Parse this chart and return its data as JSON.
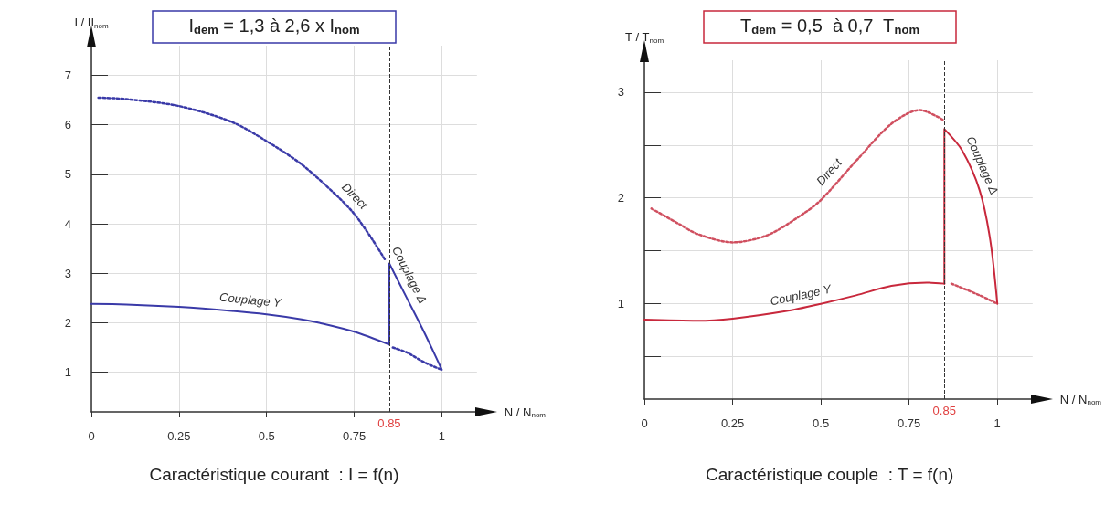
{
  "chart_data": [
    {
      "type": "line",
      "title": "I$_{dem}$ = 1,3 à 2,6 x I$_{nom}$",
      "xlabel": "N / N$_{nom}$",
      "ylabel": "I / II$_{nom}$",
      "xlim": [
        0,
        1.1
      ],
      "xticks": [
        0,
        0.25,
        0.5,
        0.75,
        1
      ],
      "ylim": [
        0.2,
        7.6
      ],
      "yticks": [
        1,
        2,
        3,
        4,
        5,
        6,
        7
      ],
      "grid": true,
      "legend": false,
      "marker": "none",
      "series": [
        {
          "name": "Direct",
          "color": "#3a3aa8",
          "line_style": "dotted",
          "x": [
            0.02,
            0.1,
            0.25,
            0.4,
            0.5,
            0.6,
            0.7,
            0.75,
            0.8,
            0.84,
            0.845,
            0.86,
            0.9,
            0.95,
            1
          ],
          "values": [
            6.55,
            6.52,
            6.38,
            6.06,
            5.67,
            5.2,
            4.57,
            4.2,
            3.7,
            3.25,
            null,
            1.5,
            1.4,
            1.2,
            1.05
          ]
        },
        {
          "name": "Couplage Y",
          "color": "#3a3aa8",
          "line_style": "solid",
          "x": [
            0,
            0.1,
            0.25,
            0.4,
            0.5,
            0.6,
            0.65,
            0.75,
            0.85
          ],
          "values": [
            2.38,
            2.37,
            2.32,
            2.24,
            2.17,
            2.07,
            2.0,
            1.82,
            1.56
          ]
        },
        {
          "name": "Couplage Δ",
          "color": "#3a3aa8",
          "line_style": "solid",
          "x": [
            0.85,
            0.85,
            0.9,
            0.95,
            1
          ],
          "values": [
            1.56,
            3.2,
            2.5,
            1.8,
            1.05
          ]
        }
      ],
      "ref_lines": [
        {
          "axis": "x",
          "value": 0.85,
          "label": "0.85",
          "color": "#333333",
          "line_style": "dashed"
        }
      ],
      "annotations": [
        "Caractéristique courant  : I = f(n)"
      ]
    },
    {
      "type": "line",
      "title": "T$_{dem}$ = 0,5  à 0,7  T$_{nom}$",
      "xlabel": "N / N$_{nom}$",
      "ylabel": "T / T$_{nom}$",
      "xlim": [
        0,
        1.1
      ],
      "xticks": [
        0,
        0.25,
        0.5,
        0.75,
        1
      ],
      "ylim": [
        0.1,
        3.3
      ],
      "yticks": [
        {
          "value": 0.5,
          "label": null
        },
        1,
        {
          "value": 1.5,
          "label": null
        },
        2,
        {
          "value": 2.5,
          "label": null
        },
        3
      ],
      "grid": true,
      "legend": false,
      "marker": "none",
      "series": [
        {
          "name": "Direct",
          "color": "#d05060",
          "line_style": "dotted",
          "x": [
            0.02,
            0.1,
            0.15,
            0.25,
            0.35,
            0.45,
            0.5,
            0.6,
            0.7,
            0.78,
            0.85,
            0.86,
            0.87,
            0.95,
            1
          ],
          "values": [
            1.9,
            1.75,
            1.66,
            1.58,
            1.65,
            1.85,
            1.98,
            2.35,
            2.7,
            2.83,
            2.73,
            null,
            1.19,
            1.08,
            1.0
          ]
        },
        {
          "name": "Couplage Y",
          "color": "#c8283c",
          "line_style": "solid",
          "x": [
            0,
            0.15,
            0.25,
            0.4,
            0.5,
            0.6,
            0.7,
            0.8,
            0.85
          ],
          "values": [
            0.85,
            0.84,
            0.86,
            0.93,
            1.0,
            1.08,
            1.17,
            1.2,
            1.19
          ]
        },
        {
          "name": "Couplage Δ",
          "color": "#c8283c",
          "line_style": "solid",
          "x": [
            0.85,
            0.85,
            0.9,
            0.95,
            0.98,
            1
          ],
          "values": [
            1.19,
            2.65,
            2.45,
            2.07,
            1.6,
            1.0
          ]
        }
      ],
      "ref_lines": [
        {
          "axis": "x",
          "value": 0.85,
          "label": "0.85",
          "color": "#333333",
          "line_style": "dashed"
        }
      ],
      "annotations": [
        "Caractéristique couple  : T = f(n)"
      ]
    }
  ]
}
